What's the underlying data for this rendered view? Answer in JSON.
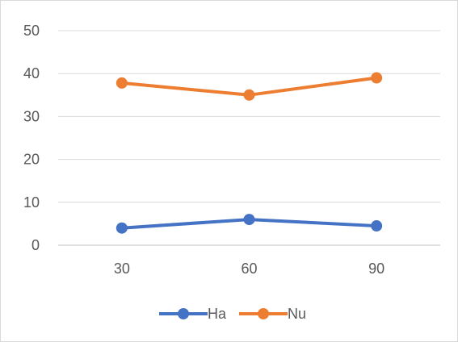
{
  "chart_data": {
    "type": "line",
    "categories": [
      "30",
      "60",
      "90"
    ],
    "series": [
      {
        "name": "Ha",
        "values": [
          4,
          6,
          4.5
        ],
        "color": "#4472c4"
      },
      {
        "name": "Nu",
        "values": [
          37.8,
          35,
          39
        ],
        "color": "#ed7d31"
      }
    ],
    "y_ticks": [
      "0",
      "10",
      "20",
      "30",
      "40",
      "50"
    ],
    "ylim": [
      0,
      50
    ],
    "grid": true,
    "legend_position": "bottom",
    "gridline_color": "#d9d9d9",
    "axis_color": "#bfbfbf"
  }
}
